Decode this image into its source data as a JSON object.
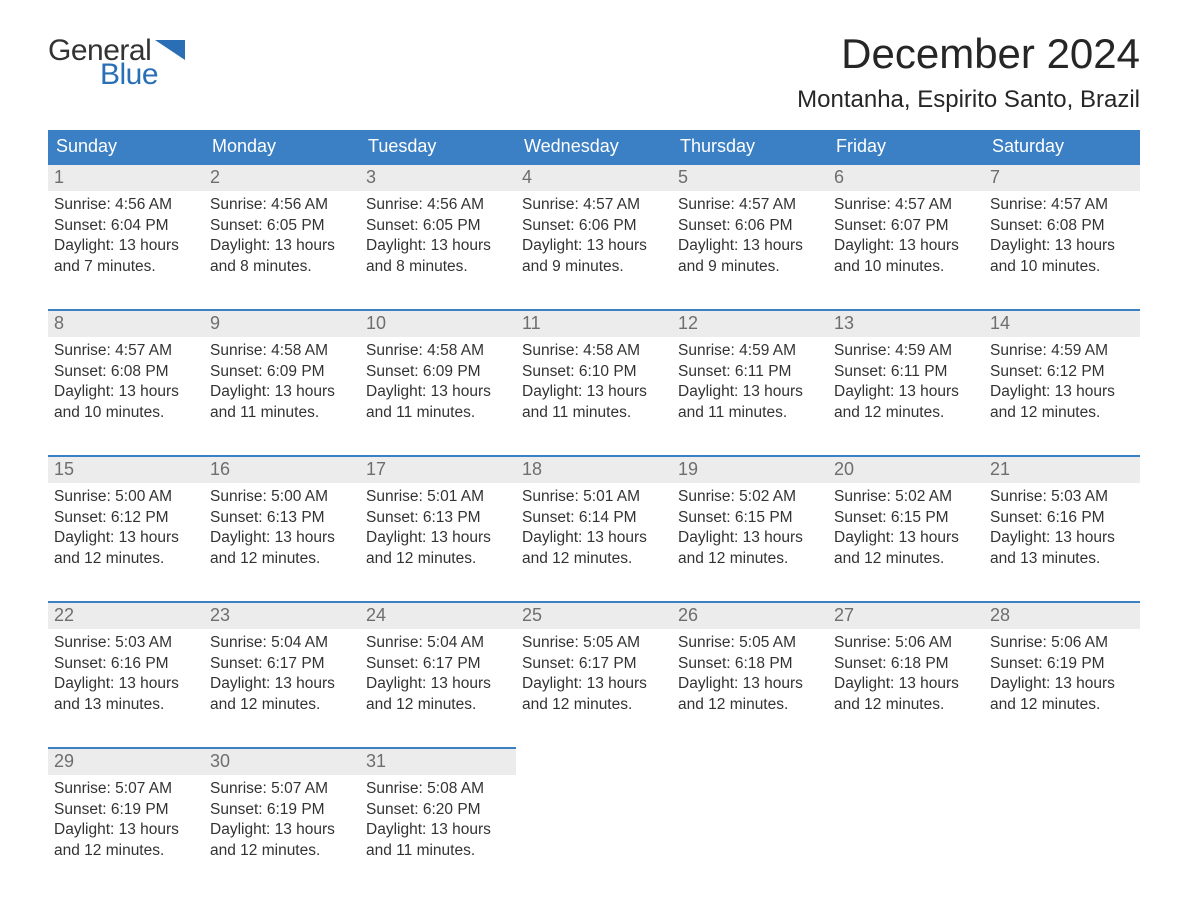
{
  "logo": {
    "text_general": "General",
    "text_blue": "Blue",
    "shape_color": "#2a6fb5",
    "text_color_dark": "#333333"
  },
  "header": {
    "month_title": "December 2024",
    "location": "Montanha, Espirito Santo, Brazil"
  },
  "calendar": {
    "header_bg": "#3b7fc4",
    "header_fg": "#ffffff",
    "row_border_color": "#3b7fc4",
    "daynum_bg": "#ececec",
    "daynum_fg": "#6e6e6e",
    "text_color": "#333333",
    "font_family": "Arial",
    "day_names": [
      "Sunday",
      "Monday",
      "Tuesday",
      "Wednesday",
      "Thursday",
      "Friday",
      "Saturday"
    ],
    "weeks": [
      [
        {
          "n": "1",
          "sr": "Sunrise: 4:56 AM",
          "ss": "Sunset: 6:04 PM",
          "d1": "Daylight: 13 hours",
          "d2": "and 7 minutes."
        },
        {
          "n": "2",
          "sr": "Sunrise: 4:56 AM",
          "ss": "Sunset: 6:05 PM",
          "d1": "Daylight: 13 hours",
          "d2": "and 8 minutes."
        },
        {
          "n": "3",
          "sr": "Sunrise: 4:56 AM",
          "ss": "Sunset: 6:05 PM",
          "d1": "Daylight: 13 hours",
          "d2": "and 8 minutes."
        },
        {
          "n": "4",
          "sr": "Sunrise: 4:57 AM",
          "ss": "Sunset: 6:06 PM",
          "d1": "Daylight: 13 hours",
          "d2": "and 9 minutes."
        },
        {
          "n": "5",
          "sr": "Sunrise: 4:57 AM",
          "ss": "Sunset: 6:06 PM",
          "d1": "Daylight: 13 hours",
          "d2": "and 9 minutes."
        },
        {
          "n": "6",
          "sr": "Sunrise: 4:57 AM",
          "ss": "Sunset: 6:07 PM",
          "d1": "Daylight: 13 hours",
          "d2": "and 10 minutes."
        },
        {
          "n": "7",
          "sr": "Sunrise: 4:57 AM",
          "ss": "Sunset: 6:08 PM",
          "d1": "Daylight: 13 hours",
          "d2": "and 10 minutes."
        }
      ],
      [
        {
          "n": "8",
          "sr": "Sunrise: 4:57 AM",
          "ss": "Sunset: 6:08 PM",
          "d1": "Daylight: 13 hours",
          "d2": "and 10 minutes."
        },
        {
          "n": "9",
          "sr": "Sunrise: 4:58 AM",
          "ss": "Sunset: 6:09 PM",
          "d1": "Daylight: 13 hours",
          "d2": "and 11 minutes."
        },
        {
          "n": "10",
          "sr": "Sunrise: 4:58 AM",
          "ss": "Sunset: 6:09 PM",
          "d1": "Daylight: 13 hours",
          "d2": "and 11 minutes."
        },
        {
          "n": "11",
          "sr": "Sunrise: 4:58 AM",
          "ss": "Sunset: 6:10 PM",
          "d1": "Daylight: 13 hours",
          "d2": "and 11 minutes."
        },
        {
          "n": "12",
          "sr": "Sunrise: 4:59 AM",
          "ss": "Sunset: 6:11 PM",
          "d1": "Daylight: 13 hours",
          "d2": "and 11 minutes."
        },
        {
          "n": "13",
          "sr": "Sunrise: 4:59 AM",
          "ss": "Sunset: 6:11 PM",
          "d1": "Daylight: 13 hours",
          "d2": "and 12 minutes."
        },
        {
          "n": "14",
          "sr": "Sunrise: 4:59 AM",
          "ss": "Sunset: 6:12 PM",
          "d1": "Daylight: 13 hours",
          "d2": "and 12 minutes."
        }
      ],
      [
        {
          "n": "15",
          "sr": "Sunrise: 5:00 AM",
          "ss": "Sunset: 6:12 PM",
          "d1": "Daylight: 13 hours",
          "d2": "and 12 minutes."
        },
        {
          "n": "16",
          "sr": "Sunrise: 5:00 AM",
          "ss": "Sunset: 6:13 PM",
          "d1": "Daylight: 13 hours",
          "d2": "and 12 minutes."
        },
        {
          "n": "17",
          "sr": "Sunrise: 5:01 AM",
          "ss": "Sunset: 6:13 PM",
          "d1": "Daylight: 13 hours",
          "d2": "and 12 minutes."
        },
        {
          "n": "18",
          "sr": "Sunrise: 5:01 AM",
          "ss": "Sunset: 6:14 PM",
          "d1": "Daylight: 13 hours",
          "d2": "and 12 minutes."
        },
        {
          "n": "19",
          "sr": "Sunrise: 5:02 AM",
          "ss": "Sunset: 6:15 PM",
          "d1": "Daylight: 13 hours",
          "d2": "and 12 minutes."
        },
        {
          "n": "20",
          "sr": "Sunrise: 5:02 AM",
          "ss": "Sunset: 6:15 PM",
          "d1": "Daylight: 13 hours",
          "d2": "and 12 minutes."
        },
        {
          "n": "21",
          "sr": "Sunrise: 5:03 AM",
          "ss": "Sunset: 6:16 PM",
          "d1": "Daylight: 13 hours",
          "d2": "and 13 minutes."
        }
      ],
      [
        {
          "n": "22",
          "sr": "Sunrise: 5:03 AM",
          "ss": "Sunset: 6:16 PM",
          "d1": "Daylight: 13 hours",
          "d2": "and 13 minutes."
        },
        {
          "n": "23",
          "sr": "Sunrise: 5:04 AM",
          "ss": "Sunset: 6:17 PM",
          "d1": "Daylight: 13 hours",
          "d2": "and 12 minutes."
        },
        {
          "n": "24",
          "sr": "Sunrise: 5:04 AM",
          "ss": "Sunset: 6:17 PM",
          "d1": "Daylight: 13 hours",
          "d2": "and 12 minutes."
        },
        {
          "n": "25",
          "sr": "Sunrise: 5:05 AM",
          "ss": "Sunset: 6:17 PM",
          "d1": "Daylight: 13 hours",
          "d2": "and 12 minutes."
        },
        {
          "n": "26",
          "sr": "Sunrise: 5:05 AM",
          "ss": "Sunset: 6:18 PM",
          "d1": "Daylight: 13 hours",
          "d2": "and 12 minutes."
        },
        {
          "n": "27",
          "sr": "Sunrise: 5:06 AM",
          "ss": "Sunset: 6:18 PM",
          "d1": "Daylight: 13 hours",
          "d2": "and 12 minutes."
        },
        {
          "n": "28",
          "sr": "Sunrise: 5:06 AM",
          "ss": "Sunset: 6:19 PM",
          "d1": "Daylight: 13 hours",
          "d2": "and 12 minutes."
        }
      ],
      [
        {
          "n": "29",
          "sr": "Sunrise: 5:07 AM",
          "ss": "Sunset: 6:19 PM",
          "d1": "Daylight: 13 hours",
          "d2": "and 12 minutes."
        },
        {
          "n": "30",
          "sr": "Sunrise: 5:07 AM",
          "ss": "Sunset: 6:19 PM",
          "d1": "Daylight: 13 hours",
          "d2": "and 12 minutes."
        },
        {
          "n": "31",
          "sr": "Sunrise: 5:08 AM",
          "ss": "Sunset: 6:20 PM",
          "d1": "Daylight: 13 hours",
          "d2": "and 11 minutes."
        },
        null,
        null,
        null,
        null
      ]
    ]
  }
}
